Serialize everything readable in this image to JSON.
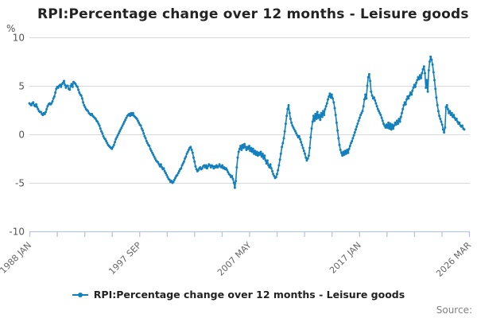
{
  "title": "RPI:Percentage change over 12 months - Leisure goods",
  "legend": {
    "label": "RPI:Percentage change over 12 months - Leisure goods"
  },
  "source": {
    "label": "Source:"
  },
  "y_axis": {
    "unit_label": "%",
    "tick_labels": [
      "10",
      "5",
      "0",
      "-5",
      "-10"
    ],
    "tick_values": [
      10,
      5,
      0,
      -5,
      -10
    ]
  },
  "x_axis": {
    "tick_labels": [
      "1988 JAN",
      "1997 SEP",
      "2007 MAY",
      "2017 JAN",
      "2026 MAR"
    ],
    "months_total": 458,
    "tick_count": 17,
    "label_every": 4
  },
  "colors": {
    "line": "#1380be",
    "grid": "#d9d9d9",
    "axis": "#b7c6dc",
    "y_tick_text": "#555555",
    "x_tick_text": "#666666",
    "unit_text": "#555555"
  },
  "chart_data": {
    "type": "line",
    "title": "RPI:Percentage change over 12 months - Leisure goods",
    "series_name": "RPI:Percentage change over 12 months - Leisure goods",
    "frequency": "monthly",
    "x_start": "1988 JAN",
    "x_axis_end": "2026 MAR",
    "ylim": [
      -10,
      10
    ],
    "ylabel": "%",
    "grid": "horizontal",
    "legend_position": "bottom",
    "values": [
      3.2,
      3.1,
      3.0,
      3.2,
      3.3,
      3.0,
      2.9,
      3.1,
      2.8,
      2.6,
      2.4,
      2.3,
      2.3,
      2.1,
      2.0,
      2.2,
      2.1,
      2.3,
      2.6,
      2.9,
      3.1,
      3.2,
      3.1,
      3.2,
      3.4,
      3.7,
      3.9,
      4.3,
      4.7,
      4.9,
      4.8,
      5.0,
      5.1,
      4.9,
      5.2,
      5.3,
      5.5,
      5.1,
      4.8,
      5.0,
      5.0,
      4.7,
      4.6,
      5.0,
      5.2,
      4.9,
      5.4,
      5.3,
      5.2,
      5.0,
      4.9,
      4.6,
      4.3,
      4.1,
      4.0,
      3.7,
      3.3,
      3.0,
      2.8,
      2.6,
      2.5,
      2.4,
      2.2,
      2.1,
      2.0,
      2.1,
      1.9,
      1.8,
      1.7,
      1.6,
      1.4,
      1.3,
      1.1,
      0.9,
      0.6,
      0.3,
      0.1,
      -0.2,
      -0.4,
      -0.5,
      -0.7,
      -0.9,
      -1.1,
      -1.2,
      -1.3,
      -1.4,
      -1.5,
      -1.3,
      -1.1,
      -0.8,
      -0.5,
      -0.3,
      -0.1,
      0.1,
      0.3,
      0.5,
      0.7,
      0.9,
      1.1,
      1.3,
      1.5,
      1.7,
      1.9,
      2.0,
      2.1,
      1.9,
      2.2,
      2.0,
      2.2,
      1.9,
      1.8,
      1.7,
      1.6,
      1.4,
      1.2,
      1.0,
      0.9,
      0.6,
      0.4,
      0.1,
      -0.2,
      -0.4,
      -0.7,
      -0.9,
      -1.1,
      -1.2,
      -1.5,
      -1.7,
      -1.9,
      -2.1,
      -2.3,
      -2.5,
      -2.7,
      -2.8,
      -2.9,
      -3.1,
      -3.3,
      -3.1,
      -3.4,
      -3.6,
      -3.5,
      -3.8,
      -4.0,
      -4.2,
      -4.4,
      -4.6,
      -4.7,
      -4.9,
      -4.8,
      -5.0,
      -4.9,
      -4.7,
      -4.5,
      -4.3,
      -4.2,
      -4.0,
      -3.8,
      -3.6,
      -3.5,
      -3.2,
      -3.0,
      -2.8,
      -2.5,
      -2.3,
      -2.0,
      -1.8,
      -1.6,
      -1.4,
      -1.3,
      -1.6,
      -1.9,
      -2.4,
      -2.8,
      -3.3,
      -3.6,
      -3.8,
      -3.7,
      -3.5,
      -3.4,
      -3.6,
      -3.5,
      -3.3,
      -3.2,
      -3.4,
      -3.2,
      -3.5,
      -3.3,
      -3.1,
      -3.2,
      -3.4,
      -3.2,
      -3.3,
      -3.5,
      -3.3,
      -3.4,
      -3.2,
      -3.4,
      -3.3,
      -3.1,
      -3.3,
      -3.4,
      -3.2,
      -3.5,
      -3.4,
      -3.6,
      -3.5,
      -3.7,
      -3.9,
      -4.1,
      -4.2,
      -4.4,
      -4.3,
      -4.6,
      -5.0,
      -5.5,
      -4.8,
      -3.4,
      -2.4,
      -1.8,
      -1.5,
      -1.2,
      -1.6,
      -1.1,
      -1.4,
      -1.0,
      -1.3,
      -1.6,
      -1.3,
      -1.5,
      -1.2,
      -1.7,
      -1.4,
      -1.8,
      -1.5,
      -2.0,
      -1.7,
      -2.1,
      -1.8,
      -2.2,
      -1.9,
      -2.1,
      -1.8,
      -2.3,
      -2.0,
      -2.5,
      -2.2,
      -2.7,
      -3.0,
      -2.7,
      -3.2,
      -3.4,
      -3.1,
      -3.5,
      -3.8,
      -4.1,
      -4.3,
      -4.5,
      -4.4,
      -4.1,
      -3.7,
      -3.2,
      -2.6,
      -2.0,
      -1.3,
      -0.9,
      -0.4,
      0.3,
      1.1,
      1.9,
      2.6,
      3.0,
      2.2,
      1.6,
      1.2,
      0.9,
      0.7,
      0.5,
      0.3,
      0.1,
      -0.1,
      -0.3,
      -0.2,
      -0.5,
      -0.8,
      -1.1,
      -1.4,
      -1.7,
      -2.0,
      -2.4,
      -2.7,
      -2.5,
      -2.2,
      -1.4,
      -0.3,
      0.6,
      1.3,
      1.9,
      1.4,
      2.1,
      1.6,
      2.3,
      1.7,
      2.0,
      1.5,
      2.2,
      1.8,
      2.4,
      2.0,
      2.6,
      2.9,
      3.2,
      3.6,
      3.9,
      4.2,
      3.8,
      4.1,
      3.7,
      3.3,
      2.7,
      2.0,
      1.2,
      0.4,
      -0.4,
      -1.1,
      -1.6,
      -1.9,
      -2.2,
      -1.8,
      -2.1,
      -1.7,
      -2.0,
      -1.6,
      -1.9,
      -1.5,
      -1.2,
      -0.9,
      -0.7,
      -0.4,
      -0.1,
      0.2,
      0.5,
      0.8,
      1.1,
      1.4,
      1.7,
      2.0,
      2.2,
      2.4,
      2.9,
      3.6,
      4.1,
      3.7,
      5.0,
      5.9,
      6.2,
      5.5,
      4.4,
      4.0,
      3.7,
      3.8,
      3.5,
      3.2,
      2.9,
      2.6,
      2.4,
      2.2,
      2.0,
      1.7,
      1.4,
      1.1,
      0.9,
      0.7,
      1.0,
      0.7,
      1.2,
      0.6,
      1.1,
      0.5,
      1.0,
      0.6,
      0.9,
      1.2,
      1.0,
      1.4,
      1.1,
      1.6,
      1.3,
      1.8,
      2.2,
      2.6,
      3.0,
      3.3,
      3.1,
      3.6,
      3.9,
      3.7,
      4.0,
      4.3,
      4.1,
      4.5,
      4.8,
      5.1,
      4.9,
      5.3,
      5.6,
      5.9,
      5.7,
      6.1,
      5.8,
      6.3,
      6.7,
      7.0,
      6.3,
      4.8,
      5.6,
      4.4,
      6.6,
      7.5,
      8.0,
      7.7,
      7.2,
      6.4,
      5.6,
      4.7,
      3.8,
      3.0,
      2.4,
      1.9,
      1.6,
      1.3,
      1.0,
      0.5,
      0.2,
      0.7,
      2.8,
      3.0,
      2.6,
      2.2,
      2.4,
      2.0,
      2.2,
      1.8,
      2.0,
      1.7,
      1.5,
      1.6,
      1.3,
      1.1,
      1.2,
      0.9,
      0.8,
      0.9,
      0.6,
      0.5
    ]
  }
}
